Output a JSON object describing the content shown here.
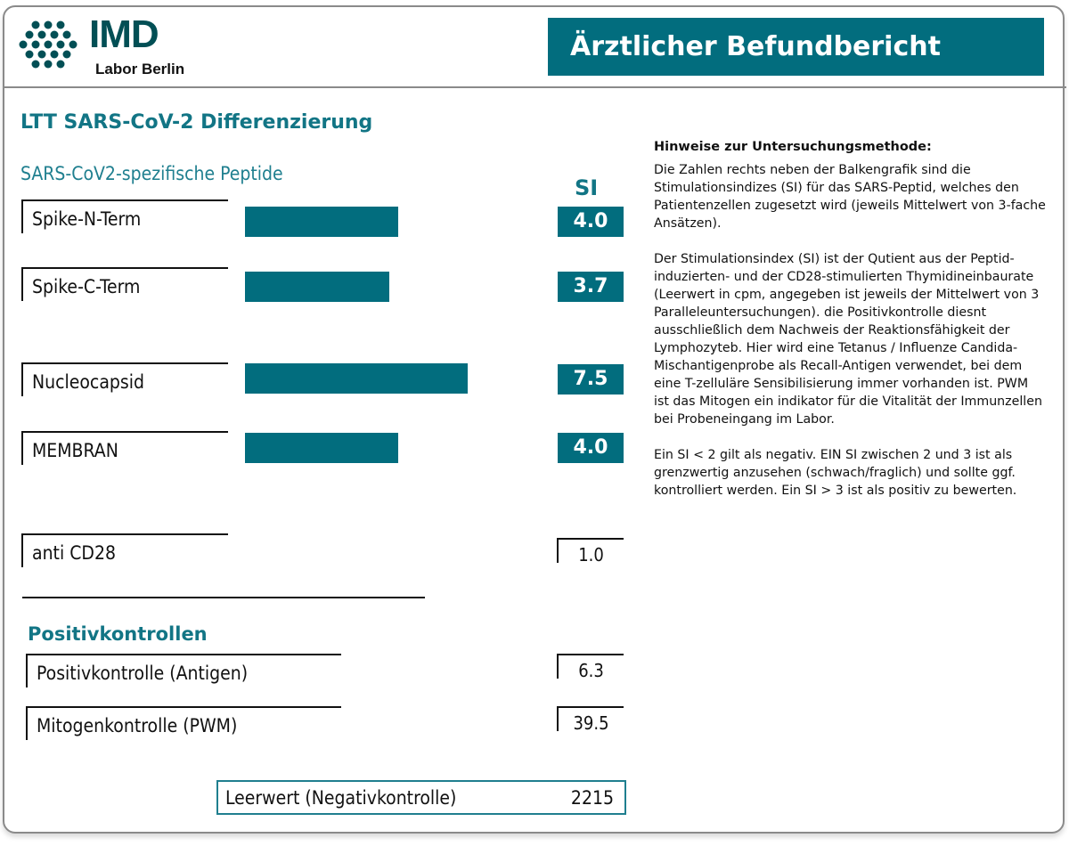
{
  "header": {
    "logo_text": "IMD",
    "logo_subtext": "Labor Berlin",
    "banner_title": "Ärztlicher Befundbericht"
  },
  "colors": {
    "accent": "#026d7e",
    "title": "#127585"
  },
  "main": {
    "title": "LTT SARS-CoV-2 Differenzierung",
    "subtitle": "SARS-CoV2-spezifische Peptide",
    "si_header": "SI",
    "peptides": [
      {
        "label": "Spike-N-Term",
        "si": 4.0,
        "si_text": "4.0"
      },
      {
        "label": "Spike-C-Term",
        "si": 3.7,
        "si_text": "3.7"
      },
      {
        "label": "Nucleocapsid",
        "si": 7.5,
        "si_text": "7.5"
      },
      {
        "label": "MEMBRAN",
        "si": 4.0,
        "si_text": "4.0"
      }
    ],
    "control": {
      "label": "anti CD28",
      "si_text": "1.0"
    },
    "positive_title": "Positivkontrollen",
    "positive": [
      {
        "label": "Positivkontrolle (Antigen)",
        "si_text": "6.3"
      },
      {
        "label": "Mitogenkontrolle (PWM)",
        "si_text": "39.5"
      }
    ],
    "blank": {
      "label": "Leerwert (Negativkontrolle)",
      "value": "2215"
    }
  },
  "notes": {
    "heading": "Hinweise zur Untersuchungsmethode:",
    "paragraphs": [
      "Die Zahlen rechts neben der Balkengrafik sind die Stimulationsindizes (SI) für das SARS-Peptid, welches den Patientenzellen zugesetzt wird (jeweils Mittelwert von 3-fache Ansätzen).",
      "Der Stimulationsindex (SI) ist der Qutient aus der Peptid-induzierten- und der CD28-stimulierten Thymidineinbaurate (Leerwert in cpm, angegeben ist jeweils der Mittelwert von 3 Paralleleuntersuchungen). die Positivkontrolle diesnt ausschließlich dem Nachweis der Reaktionsfähigkeit der Lymphozyteb. Hier wird eine Tetanus / Influenze Candida-Mischantigenprobe als Recall-Antigen verwendet, bei dem eine T-zelluläre Sensibilisierung immer vorhanden ist. PWM ist das Mitogen ein indikator für die Vitalität der Immunzellen bei Probeneingang im Labor.",
      "Ein SI < 2 gilt als negativ. EIN SI zwischen 2 und 3 ist als grenzwertig anzusehen (schwach/fraglich) und sollte ggf. kontrolliert werden. Ein SI > 3 ist als positiv zu bewerten."
    ]
  }
}
